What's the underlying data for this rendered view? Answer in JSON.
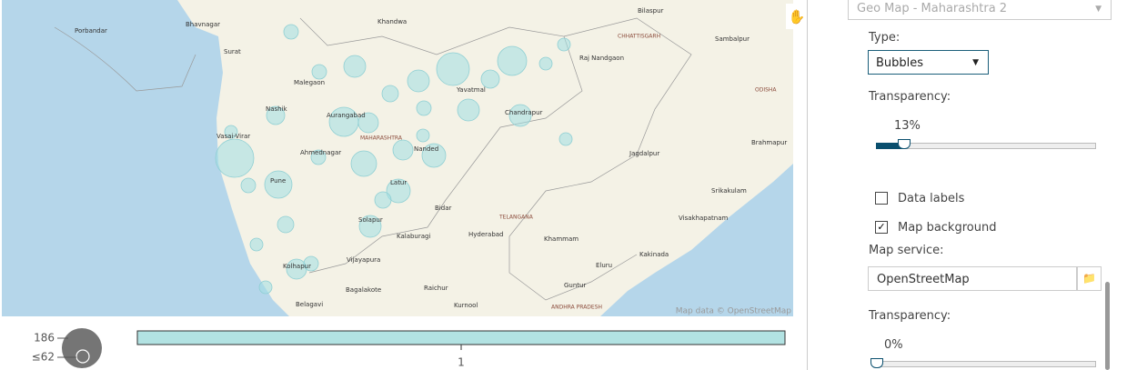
{
  "map": {
    "labels": [
      "Porbandar",
      "Bhavnagar",
      "Khandwa",
      "Bilaspur",
      "Surat",
      "CHHATTISGARH",
      "Raj Nandgaon",
      "Sambalpur",
      "Malegaon",
      "Yavatmal",
      "ODISHA",
      "Nashik",
      "Aurangabad",
      "MAHARASHTRA",
      "Chandrapur",
      "Vasai-Virar",
      "Ahmednagar",
      "Nanded",
      "Jagdalpur",
      "Brahmapur",
      "Pune",
      "Latur",
      "Bidar",
      "TELANGANA",
      "Srikakulam",
      "Visakhapatnam",
      "Solapur",
      "Kalaburagi",
      "Hyderabad",
      "Khammam",
      "Kakinada",
      "Kolhapur",
      "Vijayapura",
      "Eluru",
      "Bagalakote",
      "Raichur",
      "Guntur",
      "Belagavi",
      "Kurnool",
      "ANDHRA PRADESH"
    ],
    "attribution": "Map data © OpenStreetMap"
  },
  "legend": {
    "size_max": 186,
    "size_min": "≤62",
    "color_tick": 1
  },
  "panel": {
    "object": "Geo Map - Maharashtra 2",
    "type_label": "Type:",
    "type_value": "Bubbles",
    "transparency_label": "Transparency:",
    "transparency_value": "13%",
    "data_labels": "Data labels",
    "map_background": "Map background",
    "map_service_label": "Map service:",
    "map_service_value": "OpenStreetMap",
    "transparency2_label": "Transparency:",
    "transparency2_value": "0%"
  }
}
